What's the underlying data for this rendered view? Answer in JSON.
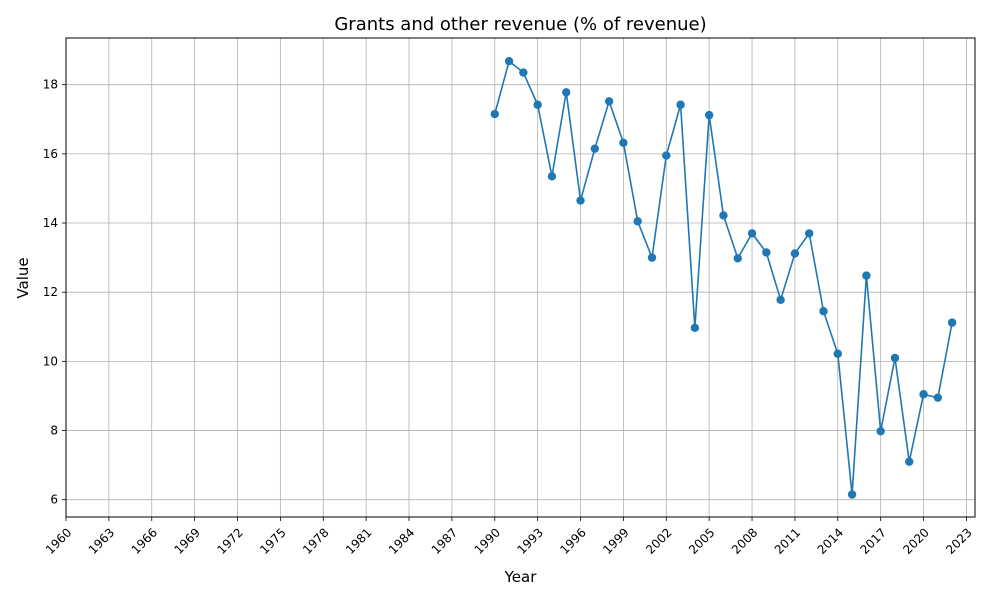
{
  "chart_data": {
    "type": "line",
    "title": "Grants and other revenue (% of revenue)",
    "xlabel": "Year",
    "ylabel": "Value",
    "xlim": [
      1960,
      2023.6
    ],
    "ylim": [
      5.5,
      19.35
    ],
    "grid": true,
    "x_ticks": [
      1960,
      1963,
      1966,
      1969,
      1972,
      1975,
      1978,
      1981,
      1984,
      1987,
      1990,
      1993,
      1996,
      1999,
      2002,
      2005,
      2008,
      2011,
      2014,
      2017,
      2020,
      2023
    ],
    "y_ticks": [
      6,
      8,
      10,
      12,
      14,
      16,
      18
    ],
    "series": [
      {
        "color": "#1f77b4",
        "marker": "circle",
        "x": [
          1990,
          1991,
          1992,
          1993,
          1994,
          1995,
          1996,
          1997,
          1998,
          1999,
          2000,
          2001,
          2002,
          2003,
          2004,
          2005,
          2006,
          2007,
          2008,
          2009,
          2010,
          2011,
          2012,
          2013,
          2014,
          2015,
          2016,
          2017,
          2018,
          2019,
          2020,
          2021,
          2022
        ],
        "values": [
          17.15,
          18.68,
          18.35,
          17.42,
          15.35,
          17.78,
          14.65,
          16.15,
          17.52,
          16.32,
          14.05,
          13.0,
          15.95,
          17.42,
          10.97,
          17.12,
          14.22,
          12.98,
          13.7,
          13.15,
          11.78,
          13.12,
          13.7,
          11.45,
          10.22,
          6.15,
          12.48,
          7.98,
          10.1,
          7.1,
          9.05,
          8.95,
          11.12
        ]
      }
    ]
  }
}
